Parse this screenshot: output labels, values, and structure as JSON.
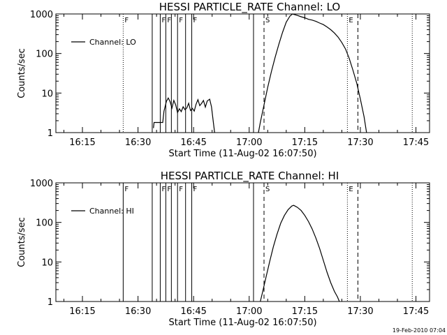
{
  "timestamp": "19-Feb-2010 07:04",
  "chart_data": [
    {
      "type": "line",
      "title": "HESSI PARTICLE_RATE Channel: LO",
      "xlabel": "Start Time (11-Aug-02 16:07:50)",
      "ylabel": "Counts/sec",
      "xlim": [
        "16:07:50",
        "17:48:40"
      ],
      "ylim": [
        1,
        1000
      ],
      "yscale": "log",
      "xticks": [
        "16:15",
        "16:30",
        "16:45",
        "17:00",
        "17:15",
        "17:30",
        "17:45"
      ],
      "yticks": [
        "1",
        "10",
        "100",
        "1000"
      ],
      "legend": {
        "placement": "top-left",
        "entries": [
          "Channel: LO"
        ]
      },
      "series": [
        {
          "name": "Channel: LO",
          "segments": [
            [
              [
                "16:34:10",
                1.3
              ],
              [
                "16:34:20",
                1.8
              ],
              [
                "16:36:40",
                1.8
              ],
              [
                "16:37:00",
                3.5
              ],
              [
                "16:37:40",
                6.2
              ],
              [
                "16:38:10",
                7.5
              ],
              [
                "16:38:40",
                6.0
              ],
              [
                "16:39:10",
                4.2
              ],
              [
                "16:39:40",
                6.5
              ],
              [
                "16:40:10",
                5.0
              ],
              [
                "16:40:40",
                3.2
              ],
              [
                "16:41:10",
                4.0
              ],
              [
                "16:41:40",
                3.4
              ],
              [
                "16:42:10",
                4.5
              ],
              [
                "16:42:40",
                3.8
              ],
              [
                "16:43:10",
                4.2
              ],
              [
                "16:43:40",
                5.5
              ],
              [
                "16:44:10",
                3.6
              ],
              [
                "16:44:40",
                4.1
              ],
              [
                "16:45:10",
                3.5
              ],
              [
                "16:45:40",
                5.2
              ],
              [
                "16:46:10",
                6.8
              ],
              [
                "16:46:40",
                4.8
              ],
              [
                "16:47:10",
                5.5
              ],
              [
                "16:47:40",
                6.5
              ],
              [
                "16:48:10",
                4.4
              ],
              [
                "16:48:40",
                6.3
              ],
              [
                "16:49:20",
                7.0
              ],
              [
                "16:49:50",
                4.5
              ],
              [
                "16:50:20",
                1.8
              ],
              [
                "16:50:40",
                1.0
              ]
            ],
            [
              [
                "17:02:30",
                1.0
              ],
              [
                "17:03:00",
                1.8
              ],
              [
                "17:04:00",
                5
              ],
              [
                "17:05:00",
                14
              ],
              [
                "17:06:00",
                35
              ],
              [
                "17:07:00",
                80
              ],
              [
                "17:08:00",
                170
              ],
              [
                "17:09:00",
                340
              ],
              [
                "17:10:00",
                620
              ],
              [
                "17:11:00",
                880
              ],
              [
                "17:11:40",
                1000
              ],
              [
                "17:13:00",
                920
              ],
              [
                "17:14:00",
                850
              ],
              [
                "17:15:00",
                800
              ],
              [
                "17:16:00",
                730
              ],
              [
                "17:17:00",
                700
              ],
              [
                "17:18:00",
                650
              ],
              [
                "17:19:00",
                590
              ],
              [
                "17:20:00",
                540
              ],
              [
                "17:21:00",
                470
              ],
              [
                "17:22:00",
                400
              ],
              [
                "17:23:00",
                330
              ],
              [
                "17:24:00",
                260
              ],
              [
                "17:25:00",
                190
              ],
              [
                "17:26:00",
                130
              ],
              [
                "17:27:00",
                75
              ],
              [
                "17:28:00",
                38
              ],
              [
                "17:29:00",
                18
              ],
              [
                "17:30:00",
                7
              ],
              [
                "17:31:00",
                2.5
              ],
              [
                "17:31:40",
                1.0
              ]
            ]
          ]
        }
      ],
      "markers": [
        {
          "time": "16:26:00",
          "style": "dotted",
          "label": "F"
        },
        {
          "time": "16:33:50",
          "style": "solid",
          "label": ""
        },
        {
          "time": "16:36:00",
          "style": "solid",
          "label": "F"
        },
        {
          "time": "16:37:30",
          "style": "solid",
          "label": "F"
        },
        {
          "time": "16:39:00",
          "style": "solid",
          "label": ""
        },
        {
          "time": "16:40:40",
          "style": "solid",
          "label": "F"
        },
        {
          "time": "16:42:50",
          "style": "solid",
          "label": ""
        },
        {
          "time": "16:44:30",
          "style": "solid",
          "label": "F"
        },
        {
          "time": "17:01:10",
          "style": "solid",
          "label": ""
        },
        {
          "time": "17:04:00",
          "style": "dashed",
          "label": "S"
        },
        {
          "time": "17:26:30",
          "style": "dotted",
          "label": "E"
        },
        {
          "time": "17:29:20",
          "style": "dashed",
          "label": ""
        },
        {
          "time": "17:44:00",
          "style": "dotted",
          "label": ""
        }
      ]
    },
    {
      "type": "line",
      "title": "HESSI PARTICLE_RATE Channel: HI",
      "xlabel": "Start Time (11-Aug-02 16:07:50)",
      "ylabel": "Counts/sec",
      "xlim": [
        "16:07:50",
        "17:48:40"
      ],
      "ylim": [
        1,
        1000
      ],
      "yscale": "log",
      "xticks": [
        "16:15",
        "16:30",
        "16:45",
        "17:00",
        "17:15",
        "17:30",
        "17:45"
      ],
      "yticks": [
        "1",
        "10",
        "100",
        "1000"
      ],
      "legend": {
        "placement": "top-left",
        "entries": [
          "Channel: HI"
        ]
      },
      "series": [
        {
          "name": "Channel: HI",
          "segments": [
            [
              [
                "17:03:00",
                1.0
              ],
              [
                "17:03:40",
                1.8
              ],
              [
                "17:04:30",
                4
              ],
              [
                "17:05:30",
                10
              ],
              [
                "17:06:30",
                24
              ],
              [
                "17:07:30",
                50
              ],
              [
                "17:08:30",
                95
              ],
              [
                "17:09:30",
                150
              ],
              [
                "17:10:30",
                210
              ],
              [
                "17:11:30",
                260
              ],
              [
                "17:12:00",
                270
              ],
              [
                "17:13:00",
                240
              ],
              [
                "17:14:00",
                200
              ],
              [
                "17:15:00",
                150
              ],
              [
                "17:16:00",
                105
              ],
              [
                "17:17:00",
                68
              ],
              [
                "17:18:00",
                40
              ],
              [
                "17:19:00",
                22
              ],
              [
                "17:20:00",
                11
              ],
              [
                "17:21:00",
                5.5
              ],
              [
                "17:22:00",
                3.0
              ],
              [
                "17:23:00",
                1.8
              ],
              [
                "17:23:50",
                1.3
              ],
              [
                "17:24:20",
                1.0
              ]
            ]
          ]
        }
      ],
      "markers": [
        {
          "time": "16:26:00",
          "style": "solid",
          "label": "F"
        },
        {
          "time": "16:33:50",
          "style": "solid",
          "label": ""
        },
        {
          "time": "16:36:00",
          "style": "solid",
          "label": "F"
        },
        {
          "time": "16:37:30",
          "style": "solid",
          "label": "F"
        },
        {
          "time": "16:39:00",
          "style": "solid",
          "label": ""
        },
        {
          "time": "16:40:40",
          "style": "solid",
          "label": "F"
        },
        {
          "time": "16:42:50",
          "style": "solid",
          "label": ""
        },
        {
          "time": "16:44:30",
          "style": "solid",
          "label": "F"
        },
        {
          "time": "17:01:10",
          "style": "solid",
          "label": ""
        },
        {
          "time": "17:04:00",
          "style": "dashed",
          "label": "S"
        },
        {
          "time": "17:26:30",
          "style": "dotted",
          "label": "E"
        },
        {
          "time": "17:29:20",
          "style": "dashed",
          "label": ""
        },
        {
          "time": "17:44:00",
          "style": "dotted",
          "label": ""
        }
      ]
    }
  ]
}
